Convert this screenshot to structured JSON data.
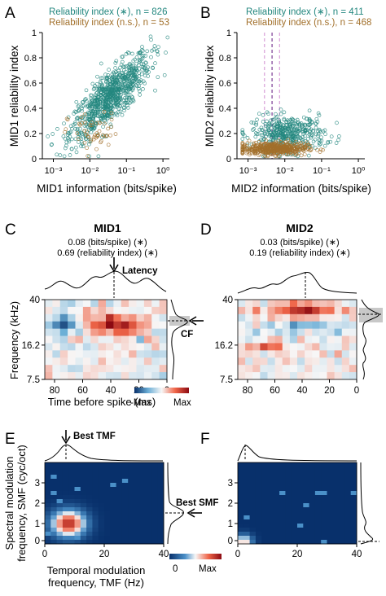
{
  "panel_letters": [
    "A",
    "B",
    "C",
    "D",
    "E",
    "F"
  ],
  "colors": {
    "significant": "#23877f",
    "nonsignificant": "#a2702b",
    "dashed_mid": "#7b3c93",
    "dashed_side": "#d8a0d8",
    "shade": "#c8c8c8",
    "heat_max": "#8c0a12",
    "heat_min": "#08306b"
  },
  "chart_data": [
    {
      "panel": "A",
      "type": "scatter",
      "xlabel": "MID1 information (bits/spike)",
      "ylabel": "MID1 reliability index",
      "xscale": "log",
      "xlim": [
        0.0005,
        1.5
      ],
      "ylim": [
        0,
        1
      ],
      "xticks": [
        0.001,
        0.01,
        0.1,
        1
      ],
      "xtick_labels": [
        "10⁻³",
        "10⁻²",
        "10⁻¹",
        "10⁰"
      ],
      "yticks": [
        0,
        0.2,
        0.4,
        0.6,
        0.8,
        1
      ],
      "ytick_labels": [
        "0",
        "0.2",
        "0.4",
        "0.6",
        "0.8",
        "1"
      ],
      "legend_position": "top-left",
      "series": [
        {
          "name": "Reliability index (∗), n = 826",
          "role": "significant",
          "n": 826,
          "trend": {
            "x_log_center": -1.45,
            "x_log_spread": 0.55,
            "y_intercept": 0.85,
            "y_slope": 0.25,
            "y_noise": 0.1
          }
        },
        {
          "name": "Reliability index (n.s.), n = 53",
          "role": "nonsignificant",
          "n": 53,
          "trend": {
            "x_log_center": -1.9,
            "x_log_spread": 0.35,
            "y_center": 0.2,
            "y_noise": 0.08
          }
        }
      ]
    },
    {
      "panel": "B",
      "type": "scatter",
      "xlabel": "MID2 information (bits/spike)",
      "ylabel": "MID2 reliability index",
      "xscale": "log",
      "xlim": [
        0.0005,
        1.5
      ],
      "ylim": [
        0,
        1
      ],
      "xticks": [
        0.001,
        0.01,
        0.1,
        1
      ],
      "xtick_labels": [
        "10⁻³",
        "10⁻²",
        "10⁻¹",
        "10⁰"
      ],
      "yticks": [
        0,
        0.2,
        0.4,
        0.6,
        0.8,
        1
      ],
      "ytick_labels": [
        "0",
        "0.2",
        "0.4",
        "0.6",
        "0.8",
        "1"
      ],
      "legend_position": "top-left",
      "vlines": [
        {
          "x": 0.0045,
          "role": "dashed_mid"
        },
        {
          "x": 0.0028,
          "role": "dashed_side"
        },
        {
          "x": 0.0072,
          "role": "dashed_side"
        }
      ],
      "series": [
        {
          "name": "Reliability index (∗), n = 411",
          "role": "significant",
          "n": 411,
          "trend": {
            "x_log_center": -1.9,
            "x_log_spread": 0.5,
            "y_center": 0.2,
            "y_noise": 0.07
          }
        },
        {
          "name": "Reliability index (n.s.), n = 468",
          "role": "nonsignificant",
          "n": 468,
          "trend": {
            "x_log_center": -2.3,
            "x_log_spread": 0.45,
            "y_center": 0.08,
            "y_noise": 0.025
          }
        }
      ]
    },
    {
      "panel": "C",
      "type": "heatmap",
      "title": "MID1",
      "subtitle_lines": [
        "0.08 (bits/spike) (∗)",
        "0.69 (reliability index) (∗)"
      ],
      "xlabel": "Time before spike (ms)",
      "ylabel": "Frequency (kHz)",
      "xticks": [
        "80",
        "60",
        "40",
        "20",
        "0"
      ],
      "yticks": [
        "40",
        "16.2",
        "7.5"
      ],
      "annotations": [
        "Latency",
        "CF"
      ],
      "colorbar": {
        "min_label": "-Max",
        "max_label": "Max"
      },
      "grid_size": [
        16,
        11
      ],
      "hotspots": [
        {
          "col": 9,
          "row": 3,
          "value": 1.0,
          "sigma_col": 2.2,
          "sigma_row": 0.8
        },
        {
          "col": 2,
          "row": 3,
          "value": -0.95,
          "sigma_col": 1.2,
          "sigma_row": 0.8
        },
        {
          "col": 6,
          "row": 2,
          "value": 0.25,
          "sigma_col": 1.5,
          "sigma_row": 0.8
        }
      ]
    },
    {
      "panel": "D",
      "type": "heatmap",
      "title": "MID2",
      "subtitle_lines": [
        "0.03 (bits/spike) (∗)",
        "0.19 (reliability index) (∗)"
      ],
      "xticks": [
        "80",
        "60",
        "40",
        "20",
        "0"
      ],
      "yticks": [
        "40",
        "16.2",
        "7.5"
      ],
      "grid_size": [
        16,
        11
      ],
      "hotspots": [
        {
          "col": 8,
          "row": 1,
          "value": 0.95,
          "sigma_col": 2.6,
          "sigma_row": 0.8
        },
        {
          "col": 8,
          "row": 3,
          "value": -0.45,
          "sigma_col": 4.0,
          "sigma_row": 0.6
        },
        {
          "col": 3,
          "row": 6,
          "value": 0.4,
          "sigma_col": 2.5,
          "sigma_row": 0.5
        }
      ]
    },
    {
      "panel": "E",
      "type": "heatmap",
      "xlabel_lines": [
        "Temporal modulation",
        "frequency, TMF (Hz)"
      ],
      "ylabel_lines": [
        "Spectral modulation",
        "frequency, SMF (cyc/oct)"
      ],
      "xlim": [
        0,
        40
      ],
      "ylim": [
        0,
        4
      ],
      "xticks": [
        "0",
        "20",
        "40"
      ],
      "yticks": [
        "0",
        "1",
        "2",
        "3"
      ],
      "annotations": [
        "Best TMF",
        "Best SMF"
      ],
      "colorbar": {
        "min_label": "0",
        "max_label": "Max"
      },
      "peak": {
        "tmf": 8,
        "smf": 1.0,
        "sigma_tmf": 4.0,
        "sigma_smf": 0.45
      }
    },
    {
      "panel": "F",
      "type": "heatmap",
      "xlim": [
        0,
        40
      ],
      "ylim": [
        0,
        4
      ],
      "xticks": [
        "0",
        "20",
        "40"
      ],
      "yticks": [
        "0",
        "1",
        "2",
        "3"
      ],
      "peak": {
        "tmf": 2,
        "smf": 0.1,
        "sigma_tmf": 2.0,
        "sigma_smf": 0.25
      }
    }
  ]
}
